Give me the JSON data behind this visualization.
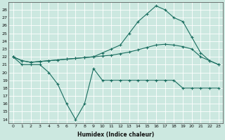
{
  "xlabel": "Humidex (Indice chaleur)",
  "bg_color": "#cce8e0",
  "line_color": "#1a6e60",
  "grid_color": "#ffffff",
  "xlim": [
    -0.5,
    23.5
  ],
  "ylim": [
    13.5,
    29.0
  ],
  "yticks": [
    14,
    15,
    16,
    17,
    18,
    19,
    20,
    21,
    22,
    23,
    24,
    25,
    26,
    27,
    28
  ],
  "xticks": [
    0,
    1,
    2,
    3,
    4,
    5,
    6,
    7,
    8,
    9,
    10,
    11,
    12,
    13,
    14,
    15,
    16,
    17,
    18,
    19,
    20,
    21,
    22,
    23
  ],
  "line1_x": [
    0,
    1,
    2,
    3,
    4,
    5,
    6,
    7,
    8,
    9,
    10,
    11,
    12,
    13,
    14,
    15,
    16,
    17,
    18,
    19,
    20,
    21,
    22,
    23
  ],
  "line1_y": [
    22,
    21.0,
    21.0,
    21.0,
    20.0,
    18.5,
    16.0,
    14.0,
    16.0,
    20.5,
    19.0,
    19.0,
    19.0,
    19.0,
    19.0,
    19.0,
    19.0,
    19.0,
    19.0,
    18.0,
    18.0,
    18.0,
    18.0,
    18.0
  ],
  "line2_x": [
    0,
    1,
    2,
    3,
    4,
    5,
    6,
    7,
    8,
    9,
    10,
    11,
    12,
    13,
    14,
    15,
    16,
    17,
    18,
    19,
    20,
    21,
    22,
    23
  ],
  "line2_y": [
    22.0,
    21.5,
    21.3,
    21.4,
    21.5,
    21.6,
    21.7,
    21.8,
    21.9,
    22.0,
    22.1,
    22.2,
    22.4,
    22.6,
    22.9,
    23.2,
    23.5,
    23.6,
    23.5,
    23.3,
    23.0,
    22.0,
    21.5,
    21.0
  ],
  "line3_x": [
    0,
    1,
    2,
    3,
    4,
    5,
    6,
    7,
    8,
    9,
    10,
    11,
    12,
    13,
    14,
    15,
    16,
    17,
    18,
    19,
    20,
    21,
    22,
    23
  ],
  "line3_y": [
    22.0,
    21.5,
    21.3,
    21.4,
    21.5,
    21.6,
    21.7,
    21.8,
    21.9,
    22.0,
    22.5,
    23.0,
    23.5,
    25.0,
    26.5,
    27.5,
    28.5,
    28.0,
    27.0,
    26.5,
    24.5,
    22.5,
    21.5,
    21.0
  ]
}
